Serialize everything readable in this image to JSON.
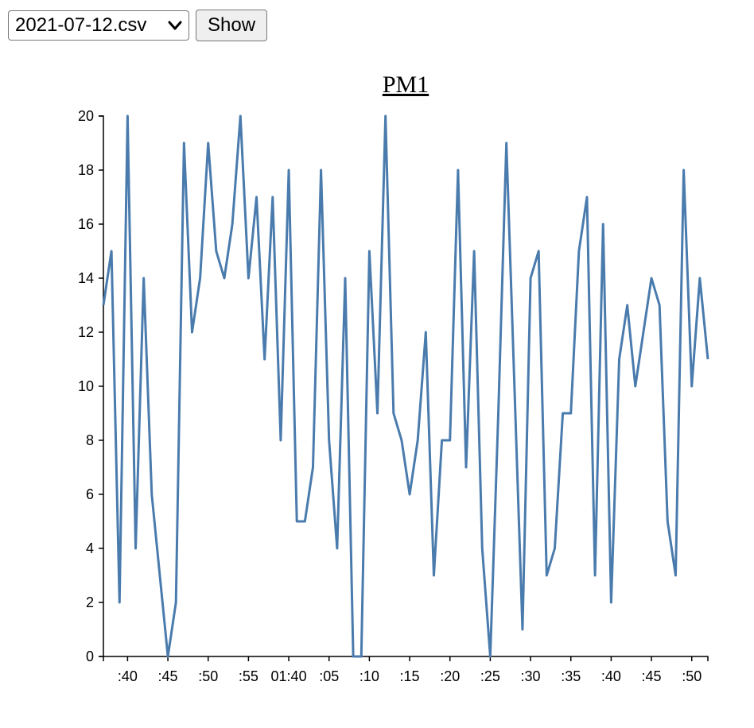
{
  "controls": {
    "file_select_value": "2021-07-12.csv",
    "show_label": "Show"
  },
  "chart_data": {
    "type": "line",
    "title": "PM1",
    "xlabel": "",
    "ylabel": "",
    "ylim": [
      0,
      20
    ],
    "yticks": [
      0,
      2,
      4,
      6,
      8,
      10,
      12,
      14,
      16,
      18,
      20
    ],
    "xticks": [
      ":40",
      ":45",
      ":50",
      ":55",
      "01:40",
      ":05",
      ":10",
      ":15",
      ":20",
      ":25",
      ":30",
      ":35",
      ":40",
      ":45",
      ":50"
    ],
    "xtick_index": [
      3,
      8,
      13,
      18,
      23,
      28,
      33,
      38,
      43,
      48,
      53,
      58,
      63,
      68,
      73
    ],
    "line_color": "#4a7bad",
    "series": [
      {
        "values": [
          13,
          15,
          2,
          20,
          4,
          14,
          6,
          3,
          0,
          2,
          19,
          12,
          14,
          19,
          15,
          14,
          16,
          20,
          14,
          17,
          11,
          17,
          8,
          18,
          5,
          5,
          7,
          18,
          8,
          4,
          14,
          0,
          0,
          15,
          9,
          20,
          9,
          8,
          6,
          8,
          12,
          3,
          8,
          8,
          18,
          7,
          15,
          4,
          0,
          9,
          19,
          10,
          1,
          14,
          15,
          3,
          4,
          9,
          9,
          15,
          17,
          3,
          16,
          2,
          11,
          13,
          10,
          12,
          14,
          13,
          5,
          3,
          18,
          10,
          14,
          11
        ]
      }
    ]
  }
}
